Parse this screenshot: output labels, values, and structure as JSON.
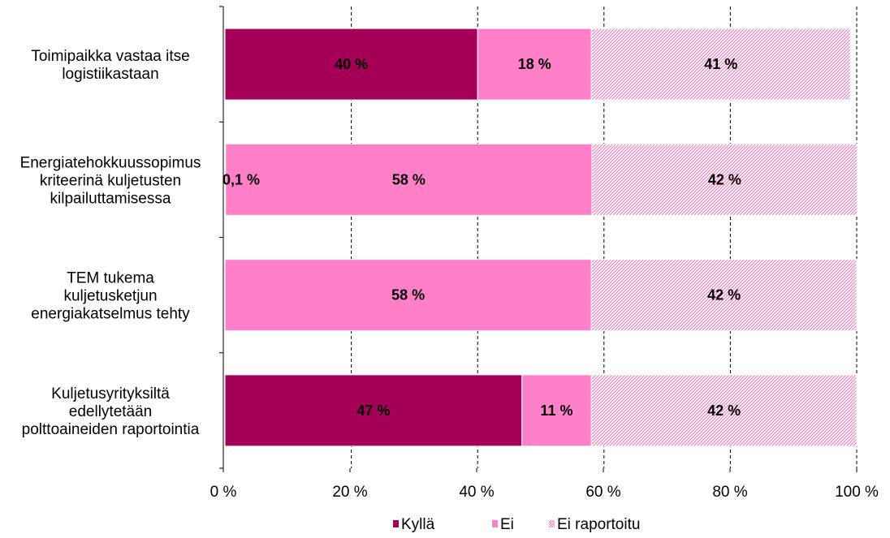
{
  "chart_data": {
    "type": "bar",
    "orientation": "horizontal",
    "stacked": true,
    "percent_stacked": true,
    "categories": [
      [
        "Toimipaikka vastaa itse",
        "logistiikastaan"
      ],
      [
        "Energiatehokkuussopimus",
        "kriteerinä kuljetusten",
        "kilpailuttamisessa"
      ],
      [
        "TEM tukema",
        "kuljetusketjun",
        "energiakatselmus tehty"
      ],
      [
        "Kuljetusyrityksiltä",
        "edellytetään",
        "polttoaineiden raportointia"
      ]
    ],
    "series": [
      {
        "name": "Kyllä",
        "color": "#a50058",
        "pattern": "solid",
        "values": [
          40,
          0.1,
          0,
          47
        ],
        "labels": [
          "40 %",
          "0,1 %",
          "",
          "47 %"
        ]
      },
      {
        "name": "Ei",
        "color": "#ff80c8",
        "pattern": "solid",
        "values": [
          18,
          58,
          58,
          11
        ],
        "labels": [
          "18 %",
          "58 %",
          "58 %",
          "11 %"
        ]
      },
      {
        "name": "Ei raportoitu",
        "color": "#f070b8",
        "pattern": "diagonal-hatch",
        "values": [
          41,
          42,
          42,
          42
        ],
        "labels": [
          "41 %",
          "42 %",
          "42 %",
          "42 %"
        ]
      }
    ],
    "x_ticks": [
      "0 %",
      "20 %",
      "40 %",
      "60 %",
      "80 %",
      "100 %"
    ],
    "xlim": [
      0,
      100
    ],
    "grid": "vertical dashed",
    "legend": "bottom"
  }
}
